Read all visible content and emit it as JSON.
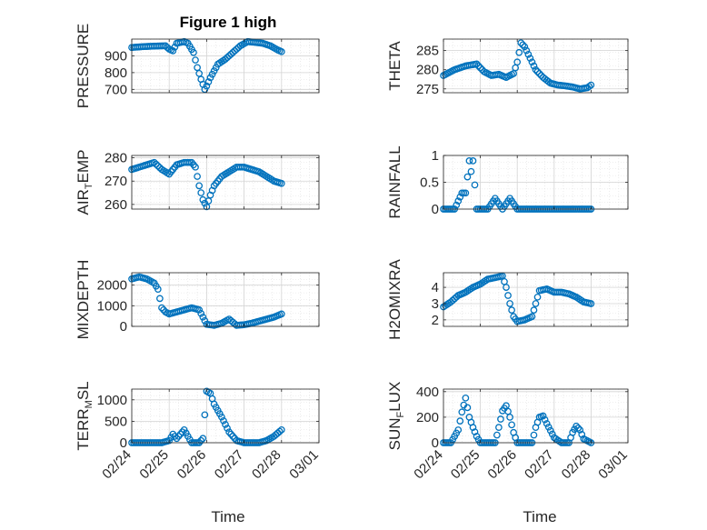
{
  "figure": {
    "title": "Figure 1 high",
    "xlabel": "Time",
    "x_tick_labels": [
      "02/24",
      "02/25",
      "02/26",
      "02/27",
      "02/28",
      "03/01"
    ]
  },
  "chart_data": [
    {
      "id": "pressure",
      "type": "scatter",
      "ylabel": "PRESSURE",
      "ylim": [
        680,
        1000
      ],
      "yticks": [
        700,
        800,
        900
      ],
      "x": [
        0,
        0.3,
        0.6,
        0.9,
        1.0,
        1.1,
        1.2,
        1.3,
        1.4,
        1.5,
        1.65,
        1.75,
        1.85,
        1.95,
        2.0,
        2.1,
        2.2,
        2.3,
        2.5,
        2.7,
        2.9,
        3.1,
        3.3,
        3.5,
        3.7,
        3.9,
        4.0
      ],
      "y": [
        950,
        955,
        958,
        960,
        940,
        930,
        975,
        980,
        985,
        975,
        920,
        830,
        760,
        700,
        720,
        770,
        810,
        850,
        880,
        920,
        960,
        985,
        980,
        975,
        960,
        935,
        925
      ],
      "grid": true
    },
    {
      "id": "theta",
      "type": "scatter",
      "ylabel": "THETA",
      "ylim": [
        274,
        288
      ],
      "yticks": [
        275,
        280,
        285
      ],
      "x": [
        0,
        0.3,
        0.6,
        0.9,
        1.1,
        1.3,
        1.5,
        1.7,
        1.9,
        2.0,
        2.1,
        2.2,
        2.3,
        2.5,
        2.7,
        2.9,
        3.1,
        3.3,
        3.5,
        3.7,
        3.9,
        4.0
      ],
      "y": [
        278.5,
        280,
        281,
        281.5,
        279.5,
        278.5,
        278.8,
        278,
        279,
        282,
        287,
        286,
        284,
        280,
        278,
        276.5,
        276,
        275.8,
        275.5,
        275,
        275.3,
        276
      ],
      "grid": true
    },
    {
      "id": "air_temp",
      "type": "scatter",
      "ylabel": "AIR_TEMP",
      "ylim": [
        258,
        281
      ],
      "yticks": [
        260,
        270,
        280
      ],
      "x": [
        0,
        0.2,
        0.4,
        0.6,
        0.8,
        1.0,
        1.2,
        1.4,
        1.6,
        1.7,
        1.8,
        1.9,
        2.0,
        2.1,
        2.2,
        2.4,
        2.6,
        2.8,
        3.0,
        3.2,
        3.4,
        3.6,
        3.8,
        4.0
      ],
      "y": [
        275,
        276,
        277,
        278,
        275,
        273,
        277,
        278,
        278,
        276,
        268,
        262,
        259,
        264,
        268,
        272,
        274,
        276,
        276,
        275,
        274,
        272,
        270,
        269
      ],
      "grid": true
    },
    {
      "id": "rainfall",
      "type": "scatter",
      "ylabel": "RAINFALL",
      "ylim": [
        0,
        1
      ],
      "yticks": [
        0,
        0.5,
        1
      ],
      "x": [
        0,
        0.3,
        0.5,
        0.55,
        0.6,
        0.65,
        0.7,
        0.75,
        0.8,
        0.9,
        1.0,
        1.2,
        1.4,
        1.6,
        1.8,
        2.0,
        2.5,
        3.0,
        3.5,
        4.0
      ],
      "y": [
        0,
        0,
        0.3,
        0.3,
        0.3,
        0.6,
        0.9,
        0.7,
        0.9,
        0,
        0,
        0,
        0.2,
        0,
        0.2,
        0,
        0,
        0,
        0,
        0
      ],
      "grid": true
    },
    {
      "id": "mixdepth",
      "type": "scatter",
      "ylabel": "MIXDEPTH",
      "ylim": [
        0,
        2600
      ],
      "yticks": [
        0,
        1000,
        2000
      ],
      "x": [
        0,
        0.2,
        0.4,
        0.6,
        0.7,
        0.8,
        0.9,
        1.0,
        1.2,
        1.4,
        1.6,
        1.8,
        2.0,
        2.2,
        2.4,
        2.6,
        2.8,
        3.0,
        3.2,
        3.4,
        3.6,
        3.8,
        4.0
      ],
      "y": [
        2300,
        2400,
        2300,
        2100,
        1800,
        900,
        700,
        600,
        700,
        800,
        900,
        800,
        100,
        50,
        150,
        350,
        50,
        80,
        150,
        250,
        350,
        450,
        600
      ],
      "grid": true
    },
    {
      "id": "h2omixra",
      "type": "scatter",
      "ylabel": "H2OMIXRA",
      "ylim": [
        1.6,
        4.9
      ],
      "yticks": [
        2,
        3,
        4
      ],
      "x": [
        0,
        0.2,
        0.4,
        0.6,
        0.8,
        1.0,
        1.2,
        1.4,
        1.6,
        1.7,
        1.8,
        1.9,
        2.0,
        2.2,
        2.4,
        2.6,
        2.8,
        3.0,
        3.2,
        3.4,
        3.6,
        3.8,
        4.0
      ],
      "y": [
        2.8,
        3.1,
        3.5,
        3.7,
        4.0,
        4.2,
        4.5,
        4.6,
        4.7,
        4.0,
        3.0,
        2.2,
        1.9,
        2.0,
        2.2,
        3.8,
        3.9,
        3.7,
        3.7,
        3.6,
        3.4,
        3.1,
        3.0
      ],
      "grid": true
    },
    {
      "id": "terr_msl",
      "type": "scatter",
      "ylabel": "TERR_MSL",
      "ylim": [
        0,
        1250
      ],
      "yticks": [
        0,
        500,
        1000
      ],
      "x": [
        0,
        0.2,
        0.4,
        0.6,
        0.8,
        1.0,
        1.1,
        1.2,
        1.4,
        1.6,
        1.7,
        1.8,
        1.9,
        2.0,
        2.1,
        2.2,
        2.4,
        2.6,
        2.8,
        3.0,
        3.2,
        3.4,
        3.6,
        3.8,
        4.0
      ],
      "y": [
        0,
        0,
        0,
        0,
        0,
        50,
        200,
        100,
        300,
        0,
        0,
        0,
        100,
        1200,
        1150,
        900,
        600,
        250,
        50,
        0,
        0,
        0,
        50,
        150,
        300
      ],
      "grid": true
    },
    {
      "id": "sun_flux",
      "type": "scatter",
      "ylabel": "SUN_FLUX",
      "ylim": [
        0,
        420
      ],
      "yticks": [
        0,
        200,
        400
      ],
      "x": [
        0,
        0.2,
        0.4,
        0.5,
        0.6,
        0.7,
        0.8,
        0.9,
        1.0,
        1.2,
        1.4,
        1.5,
        1.6,
        1.7,
        1.8,
        1.9,
        2.0,
        2.2,
        2.4,
        2.5,
        2.6,
        2.7,
        2.8,
        3.0,
        3.2,
        3.4,
        3.5,
        3.6,
        3.7,
        3.8,
        4.0
      ],
      "y": [
        0,
        0,
        100,
        240,
        350,
        200,
        120,
        50,
        0,
        0,
        0,
        120,
        250,
        290,
        200,
        80,
        0,
        0,
        0,
        120,
        200,
        210,
        150,
        40,
        0,
        0,
        80,
        130,
        100,
        30,
        0
      ],
      "grid": true
    }
  ],
  "colors": {
    "marker": "#0072bd",
    "axes": "#262626",
    "grid": "#dfdfdf"
  }
}
